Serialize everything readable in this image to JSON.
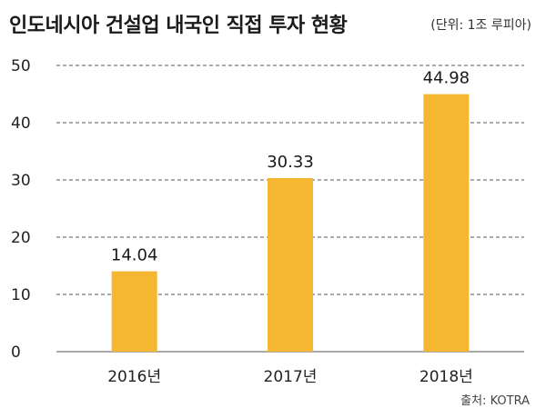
{
  "chart_data": {
    "type": "bar",
    "title": "인도네시아 건설업 내국인 직접 투자 현황",
    "unit_note": "(단위: 1조 루피아)",
    "source": "출처: KOTRA",
    "categories": [
      "2016년",
      "2017년",
      "2018년"
    ],
    "values": [
      14.04,
      30.33,
      44.98
    ],
    "data_labels": [
      "14.04",
      "30.33",
      "44.98"
    ],
    "yticks": [
      "0",
      "10",
      "20",
      "30",
      "40",
      "50"
    ],
    "ylim": [
      0,
      50
    ],
    "grid": true,
    "xlabel": "",
    "ylabel": "",
    "bar_color": "#F5B731",
    "grid_color": "#555555"
  }
}
